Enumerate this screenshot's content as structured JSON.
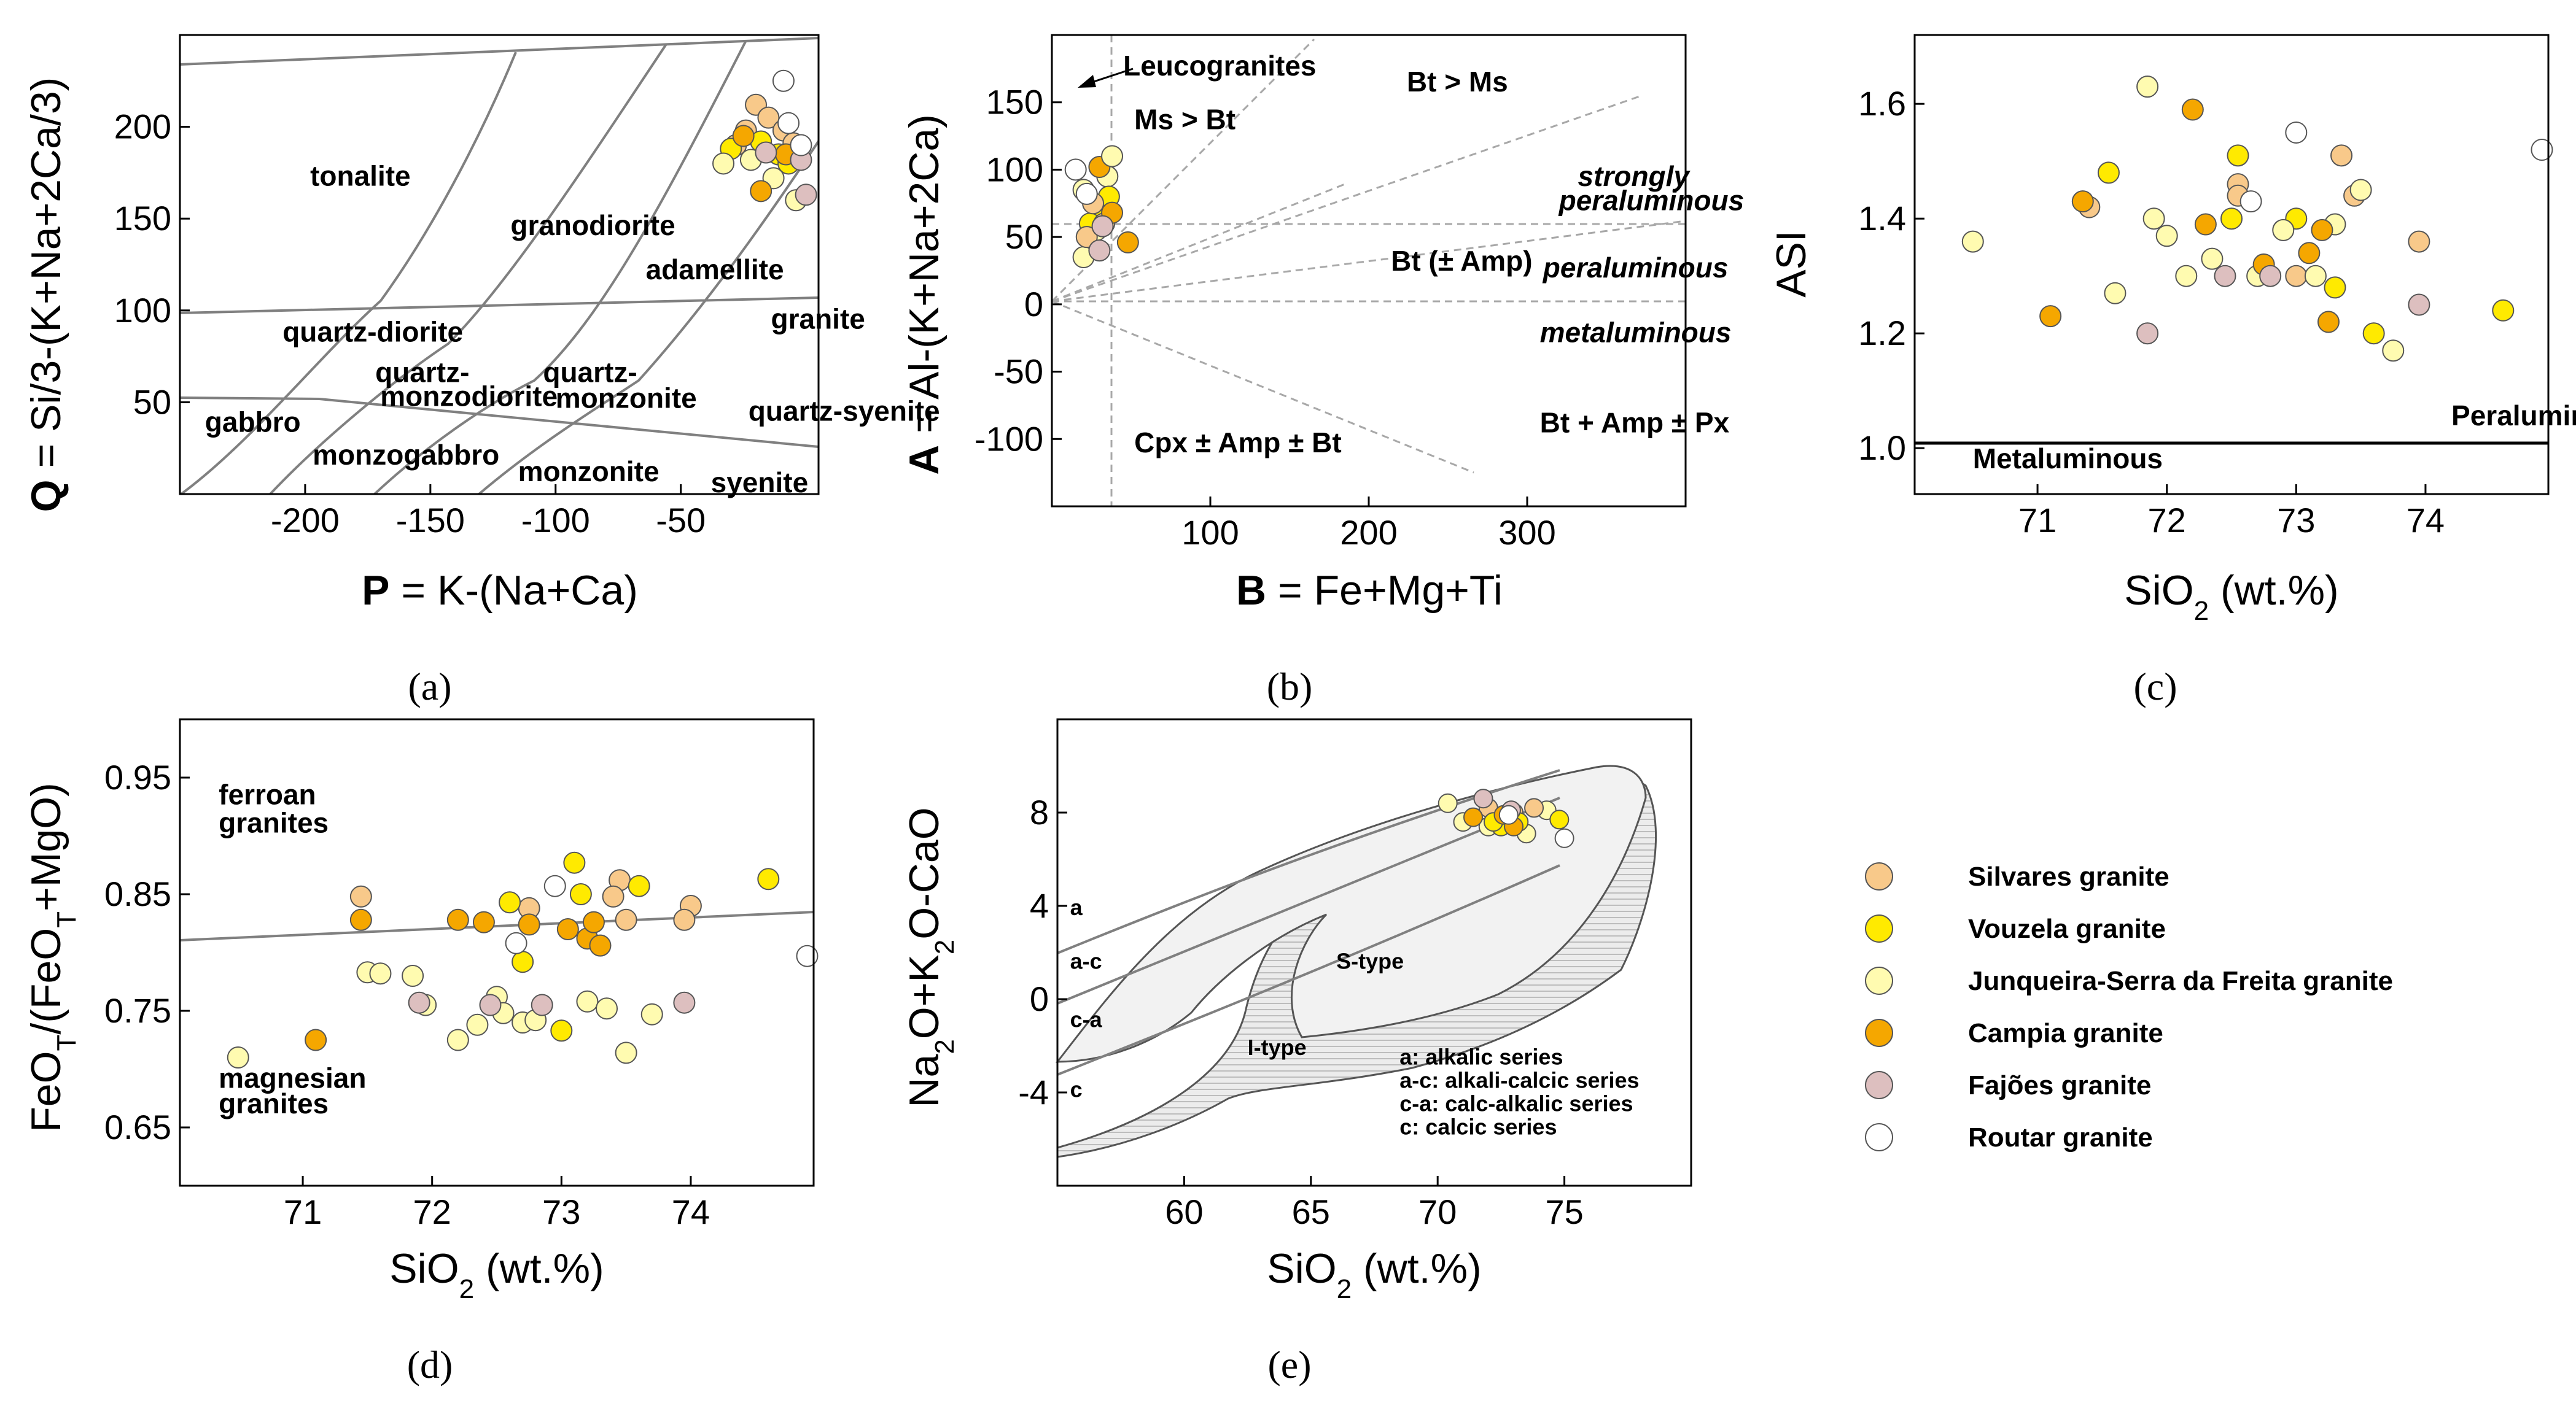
{
  "series": [
    {
      "name": "Silvares granite",
      "color": "#F8C98A"
    },
    {
      "name": "Vouzela granite",
      "color": "#FFEA00"
    },
    {
      "name": "Junqueira-Serra da Freita granite",
      "color": "#FFFBB0"
    },
    {
      "name": "Campia granite",
      "color": "#F5A700"
    },
    {
      "name": "Fajões granite",
      "color": "#DDBFBF"
    },
    {
      "name": "Routar granite",
      "color": "#FFFFFF"
    }
  ],
  "chart_data": [
    {
      "id": "a",
      "type": "scatter",
      "panel_label": "(a)",
      "xlabel_bold": "P",
      "xlabel_rest": " = K-(Na+Ca)",
      "ylabel_bold": "Q",
      "ylabel_rest": " = Si/3-(K+Na+2Ca/3)",
      "xlim": [
        -250,
        5
      ],
      "ylim": [
        0,
        250
      ],
      "xticks": [
        -200,
        -150,
        -100,
        -50
      ],
      "yticks": [
        50,
        100,
        150,
        200
      ],
      "field_labels": [
        {
          "text": "tonalite",
          "x": -198,
          "y": 168
        },
        {
          "text": "granodiorite",
          "x": -118,
          "y": 141
        },
        {
          "text": "adamellite",
          "x": -64,
          "y": 117
        },
        {
          "text": "granite",
          "x": -14,
          "y": 90
        },
        {
          "text": "quartz-diorite",
          "x": -209,
          "y": 83
        },
        {
          "text": "quartz-",
          "x": -172,
          "y": 61
        },
        {
          "text": "monzodiorite",
          "x": -170,
          "y": 48
        },
        {
          "text": "quartz-",
          "x": -105,
          "y": 61
        },
        {
          "text": "monzonite",
          "x": -100,
          "y": 47
        },
        {
          "text": "quartz-syenite",
          "x": -23,
          "y": 40
        },
        {
          "text": "gabbro",
          "x": -240,
          "y": 34
        },
        {
          "text": "monzogabbro",
          "x": -197,
          "y": 16
        },
        {
          "text": "monzonite",
          "x": -115,
          "y": 7
        },
        {
          "text": "syenite",
          "x": -38,
          "y": 1
        }
      ],
      "points": [
        {
          "s": 0,
          "x": -20,
          "y": 212
        },
        {
          "s": 0,
          "x": -15,
          "y": 205
        },
        {
          "s": 0,
          "x": -24,
          "y": 198
        },
        {
          "s": 0,
          "x": -9,
          "y": 198
        },
        {
          "s": 0,
          "x": -28,
          "y": 190
        },
        {
          "s": 0,
          "x": -5,
          "y": 191
        },
        {
          "s": 1,
          "x": -30,
          "y": 188
        },
        {
          "s": 1,
          "x": -18,
          "y": 192
        },
        {
          "s": 1,
          "x": -11,
          "y": 185
        },
        {
          "s": 1,
          "x": -7,
          "y": 180
        },
        {
          "s": 2,
          "x": -33,
          "y": 180
        },
        {
          "s": 2,
          "x": -22,
          "y": 182
        },
        {
          "s": 2,
          "x": -13,
          "y": 172
        },
        {
          "s": 2,
          "x": -4,
          "y": 160
        },
        {
          "s": 3,
          "x": -25,
          "y": 195
        },
        {
          "s": 3,
          "x": -18,
          "y": 165
        },
        {
          "s": 3,
          "x": -8,
          "y": 185
        },
        {
          "s": 4,
          "x": -16,
          "y": 186
        },
        {
          "s": 4,
          "x": -2,
          "y": 182
        },
        {
          "s": 4,
          "x": 0,
          "y": 163
        },
        {
          "s": 5,
          "x": -9,
          "y": 225
        },
        {
          "s": 5,
          "x": -7,
          "y": 202
        },
        {
          "s": 5,
          "x": -2,
          "y": 190
        }
      ]
    },
    {
      "id": "b",
      "type": "scatter",
      "panel_label": "(b)",
      "xlabel_bold": "B",
      "xlabel_rest": " = Fe+Mg+Ti",
      "ylabel_bold": "A",
      "ylabel_rest": " = Al-(K+Na+2Ca)",
      "xlim": [
        0,
        400
      ],
      "ylim": [
        -150,
        200
      ],
      "xticks": [
        100,
        200,
        300
      ],
      "yticks": [
        -100,
        -50,
        0,
        50,
        100,
        150
      ],
      "field_labels": [
        {
          "text": "Leucogranites",
          "x": 45,
          "y": 170,
          "style": "bold"
        },
        {
          "text": "Ms > Bt",
          "x": 52,
          "y": 130,
          "style": "bold"
        },
        {
          "text": "Bt > Ms",
          "x": 224,
          "y": 158,
          "style": "bold"
        },
        {
          "text": "strongly",
          "x": 332,
          "y": 88,
          "style": "bolditalic"
        },
        {
          "text": "peraluminous",
          "x": 320,
          "y": 70,
          "style": "bolditalic"
        },
        {
          "text": "Bt (± Amp)",
          "x": 214,
          "y": 25,
          "style": "bold"
        },
        {
          "text": "peraluminous",
          "x": 310,
          "y": 20,
          "style": "bolditalic"
        },
        {
          "text": "metaluminous",
          "x": 308,
          "y": -28,
          "style": "bolditalic"
        },
        {
          "text": "Bt + Amp ± Px",
          "x": 308,
          "y": -95,
          "style": "bold"
        },
        {
          "text": "Cpx ± Amp ± Bt",
          "x": 52,
          "y": -110,
          "style": "bold"
        }
      ],
      "points": [
        {
          "s": 2,
          "x": 20,
          "y": 35
        },
        {
          "s": 2,
          "x": 35,
          "y": 95
        },
        {
          "s": 2,
          "x": 28,
          "y": 55
        },
        {
          "s": 1,
          "x": 30,
          "y": 70
        },
        {
          "s": 1,
          "x": 36,
          "y": 80
        },
        {
          "s": 1,
          "x": 24,
          "y": 60
        },
        {
          "s": 0,
          "x": 26,
          "y": 75
        },
        {
          "s": 0,
          "x": 33,
          "y": 60
        },
        {
          "s": 0,
          "x": 22,
          "y": 50
        },
        {
          "s": 3,
          "x": 30,
          "y": 102
        },
        {
          "s": 3,
          "x": 48,
          "y": 46
        },
        {
          "s": 3,
          "x": 38,
          "y": 68
        },
        {
          "s": 4,
          "x": 30,
          "y": 40
        },
        {
          "s": 4,
          "x": 32,
          "y": 58
        },
        {
          "s": 2,
          "x": 38,
          "y": 110
        },
        {
          "s": 2,
          "x": 20,
          "y": 85
        },
        {
          "s": 5,
          "x": 15,
          "y": 100
        },
        {
          "s": 5,
          "x": 22,
          "y": 82
        }
      ]
    },
    {
      "id": "c",
      "type": "scatter",
      "panel_label": "(c)",
      "xlabel": "SiO",
      "xlabel_sub": "2",
      "xlabel_rest": " (wt.%)",
      "ylabel": "ASI",
      "xlim": [
        70.05,
        74.95
      ],
      "ylim": [
        0.92,
        1.72
      ],
      "xticks": [
        71,
        72,
        73,
        74
      ],
      "yticks": [
        1.0,
        1.2,
        1.4,
        1.6
      ],
      "field_labels": [
        {
          "text": "Peraluminous",
          "x": 74.2,
          "y": 1.04
        },
        {
          "text": "Metaluminous",
          "x": 70.5,
          "y": 0.965
        }
      ],
      "points": [
        {
          "s": 0,
          "x": 71.4,
          "y": 1.42
        },
        {
          "s": 0,
          "x": 72.55,
          "y": 1.46
        },
        {
          "s": 0,
          "x": 72.55,
          "y": 1.44
        },
        {
          "s": 0,
          "x": 73.35,
          "y": 1.51
        },
        {
          "s": 0,
          "x": 73.45,
          "y": 1.44
        },
        {
          "s": 0,
          "x": 73.95,
          "y": 1.36
        },
        {
          "s": 0,
          "x": 73.0,
          "y": 1.3
        },
        {
          "s": 1,
          "x": 71.55,
          "y": 1.48
        },
        {
          "s": 1,
          "x": 72.55,
          "y": 1.51
        },
        {
          "s": 1,
          "x": 72.5,
          "y": 1.4
        },
        {
          "s": 1,
          "x": 73.0,
          "y": 1.4
        },
        {
          "s": 1,
          "x": 73.3,
          "y": 1.28
        },
        {
          "s": 1,
          "x": 73.6,
          "y": 1.2
        },
        {
          "s": 1,
          "x": 74.6,
          "y": 1.24
        },
        {
          "s": 2,
          "x": 70.5,
          "y": 1.36
        },
        {
          "s": 2,
          "x": 71.6,
          "y": 1.27
        },
        {
          "s": 2,
          "x": 71.85,
          "y": 1.63
        },
        {
          "s": 2,
          "x": 71.9,
          "y": 1.4
        },
        {
          "s": 2,
          "x": 72.0,
          "y": 1.37
        },
        {
          "s": 2,
          "x": 72.15,
          "y": 1.3
        },
        {
          "s": 2,
          "x": 72.35,
          "y": 1.33
        },
        {
          "s": 2,
          "x": 72.7,
          "y": 1.3
        },
        {
          "s": 2,
          "x": 72.9,
          "y": 1.38
        },
        {
          "s": 2,
          "x": 73.15,
          "y": 1.3
        },
        {
          "s": 2,
          "x": 73.3,
          "y": 1.39
        },
        {
          "s": 2,
          "x": 73.5,
          "y": 1.45
        },
        {
          "s": 2,
          "x": 73.75,
          "y": 1.17
        },
        {
          "s": 3,
          "x": 71.35,
          "y": 1.43
        },
        {
          "s": 3,
          "x": 71.1,
          "y": 1.23
        },
        {
          "s": 3,
          "x": 72.2,
          "y": 1.59
        },
        {
          "s": 3,
          "x": 72.3,
          "y": 1.39
        },
        {
          "s": 3,
          "x": 72.75,
          "y": 1.32
        },
        {
          "s": 3,
          "x": 73.1,
          "y": 1.34
        },
        {
          "s": 3,
          "x": 73.2,
          "y": 1.38
        },
        {
          "s": 3,
          "x": 73.25,
          "y": 1.22
        },
        {
          "s": 4,
          "x": 71.85,
          "y": 1.2
        },
        {
          "s": 4,
          "x": 72.45,
          "y": 1.3
        },
        {
          "s": 4,
          "x": 72.8,
          "y": 1.3
        },
        {
          "s": 4,
          "x": 73.95,
          "y": 1.25
        },
        {
          "s": 5,
          "x": 72.65,
          "y": 1.43
        },
        {
          "s": 5,
          "x": 73.0,
          "y": 1.55
        },
        {
          "s": 5,
          "x": 74.9,
          "y": 1.52
        }
      ]
    },
    {
      "id": "d",
      "type": "scatter",
      "panel_label": "(d)",
      "xlabel": "SiO",
      "xlabel_sub": "2",
      "xlabel_rest": " (wt.%)",
      "ylabel": "FeO",
      "ylabel_sub": "T",
      "ylabel_mid": "/(FeO",
      "ylabel_sub2": "T",
      "ylabel_rest": "+MgO)",
      "xlim": [
        70.05,
        74.95
      ],
      "ylim": [
        0.6,
        1.0
      ],
      "xticks": [
        71,
        72,
        73,
        74
      ],
      "yticks": [
        0.65,
        0.75,
        0.85,
        0.95
      ],
      "field_labels": [
        {
          "text": "ferroan",
          "x": 70.35,
          "y": 0.927
        },
        {
          "text": "granites",
          "x": 70.35,
          "y": 0.903
        },
        {
          "text": "magnesian",
          "x": 70.35,
          "y": 0.684
        },
        {
          "text": "granites",
          "x": 70.35,
          "y": 0.662
        }
      ],
      "points": [
        {
          "s": 0,
          "x": 71.45,
          "y": 0.848
        },
        {
          "s": 0,
          "x": 73.45,
          "y": 0.862
        },
        {
          "s": 0,
          "x": 73.4,
          "y": 0.848
        },
        {
          "s": 0,
          "x": 73.5,
          "y": 0.828
        },
        {
          "s": 0,
          "x": 74.0,
          "y": 0.84
        },
        {
          "s": 0,
          "x": 73.95,
          "y": 0.828
        },
        {
          "s": 0,
          "x": 72.75,
          "y": 0.838
        },
        {
          "s": 1,
          "x": 73.1,
          "y": 0.877
        },
        {
          "s": 1,
          "x": 73.15,
          "y": 0.85
        },
        {
          "s": 1,
          "x": 72.6,
          "y": 0.843
        },
        {
          "s": 1,
          "x": 72.7,
          "y": 0.792
        },
        {
          "s": 1,
          "x": 73.0,
          "y": 0.733
        },
        {
          "s": 1,
          "x": 73.6,
          "y": 0.857
        },
        {
          "s": 1,
          "x": 74.6,
          "y": 0.863
        },
        {
          "s": 2,
          "x": 70.5,
          "y": 0.71
        },
        {
          "s": 2,
          "x": 71.5,
          "y": 0.783
        },
        {
          "s": 2,
          "x": 71.85,
          "y": 0.78
        },
        {
          "s": 2,
          "x": 71.95,
          "y": 0.755
        },
        {
          "s": 2,
          "x": 72.2,
          "y": 0.725
        },
        {
          "s": 2,
          "x": 72.5,
          "y": 0.762
        },
        {
          "s": 2,
          "x": 72.55,
          "y": 0.748
        },
        {
          "s": 2,
          "x": 72.7,
          "y": 0.74
        },
        {
          "s": 2,
          "x": 73.2,
          "y": 0.758
        },
        {
          "s": 2,
          "x": 73.35,
          "y": 0.752
        },
        {
          "s": 2,
          "x": 73.5,
          "y": 0.714
        },
        {
          "s": 2,
          "x": 73.7,
          "y": 0.747
        },
        {
          "s": 2,
          "x": 71.6,
          "y": 0.782
        },
        {
          "s": 2,
          "x": 72.35,
          "y": 0.738
        },
        {
          "s": 2,
          "x": 72.8,
          "y": 0.742
        },
        {
          "s": 3,
          "x": 71.1,
          "y": 0.725
        },
        {
          "s": 3,
          "x": 71.45,
          "y": 0.828
        },
        {
          "s": 3,
          "x": 72.2,
          "y": 0.828
        },
        {
          "s": 3,
          "x": 72.4,
          "y": 0.826
        },
        {
          "s": 3,
          "x": 72.75,
          "y": 0.824
        },
        {
          "s": 3,
          "x": 73.05,
          "y": 0.82
        },
        {
          "s": 3,
          "x": 73.2,
          "y": 0.812
        },
        {
          "s": 3,
          "x": 73.25,
          "y": 0.826
        },
        {
          "s": 3,
          "x": 73.3,
          "y": 0.806
        },
        {
          "s": 4,
          "x": 71.9,
          "y": 0.757
        },
        {
          "s": 4,
          "x": 72.45,
          "y": 0.755
        },
        {
          "s": 4,
          "x": 72.85,
          "y": 0.755
        },
        {
          "s": 4,
          "x": 73.95,
          "y": 0.757
        },
        {
          "s": 5,
          "x": 72.65,
          "y": 0.808
        },
        {
          "s": 5,
          "x": 72.95,
          "y": 0.857
        },
        {
          "s": 5,
          "x": 74.9,
          "y": 0.797
        }
      ]
    },
    {
      "id": "e",
      "type": "scatter",
      "panel_label": "(e)",
      "xlabel": "SiO",
      "xlabel_sub": "2",
      "xlabel_rest": " (wt.%)",
      "ylabel": "Na",
      "ylabel_sub": "2",
      "ylabel_mid": "O+K",
      "ylabel_sub2": "2",
      "ylabel_rest": "O-CaO",
      "xlim": [
        55,
        80
      ],
      "ylim": [
        -8,
        12
      ],
      "xticks": [
        60,
        65,
        70,
        75
      ],
      "yticks": [
        -4,
        0,
        4,
        8
      ],
      "field_labels": [
        {
          "text": "a",
          "x": 55.5,
          "y": 3.6
        },
        {
          "text": "a-c",
          "x": 55.5,
          "y": 1.3
        },
        {
          "text": "c-a",
          "x": 55.5,
          "y": -1.2
        },
        {
          "text": "c",
          "x": 55.5,
          "y": -4.2
        },
        {
          "text": "S-type",
          "x": 66,
          "y": 1.3
        },
        {
          "text": "I-type",
          "x": 62.5,
          "y": -2.4
        },
        {
          "text": "a: alkalic series",
          "x": 68.5,
          "y": -2.8
        },
        {
          "text": "a-c: alkali-calcic series",
          "x": 68.5,
          "y": -3.8
        },
        {
          "text": "c-a: calc-alkalic series",
          "x": 68.5,
          "y": -4.8
        },
        {
          "text": "c: calcic series",
          "x": 68.5,
          "y": -5.8
        }
      ],
      "points": [
        {
          "s": 2,
          "x": 70.4,
          "y": 8.4
        },
        {
          "s": 2,
          "x": 71.0,
          "y": 7.6
        },
        {
          "s": 2,
          "x": 73.5,
          "y": 7.1
        },
        {
          "s": 2,
          "x": 72.0,
          "y": 7.4
        },
        {
          "s": 2,
          "x": 74.3,
          "y": 8.1
        },
        {
          "s": 0,
          "x": 72.0,
          "y": 8.2
        },
        {
          "s": 0,
          "x": 73.0,
          "y": 8.0
        },
        {
          "s": 0,
          "x": 73.8,
          "y": 8.2
        },
        {
          "s": 1,
          "x": 72.5,
          "y": 7.4
        },
        {
          "s": 1,
          "x": 73.2,
          "y": 7.6
        },
        {
          "s": 1,
          "x": 74.8,
          "y": 7.7
        },
        {
          "s": 1,
          "x": 72.2,
          "y": 7.6
        },
        {
          "s": 3,
          "x": 71.4,
          "y": 7.8
        },
        {
          "s": 3,
          "x": 72.6,
          "y": 7.9
        },
        {
          "s": 3,
          "x": 73.0,
          "y": 7.4
        },
        {
          "s": 4,
          "x": 71.8,
          "y": 8.6
        },
        {
          "s": 4,
          "x": 72.9,
          "y": 8.1
        },
        {
          "s": 5,
          "x": 72.8,
          "y": 7.9
        },
        {
          "s": 5,
          "x": 75.0,
          "y": 6.9
        }
      ]
    }
  ]
}
